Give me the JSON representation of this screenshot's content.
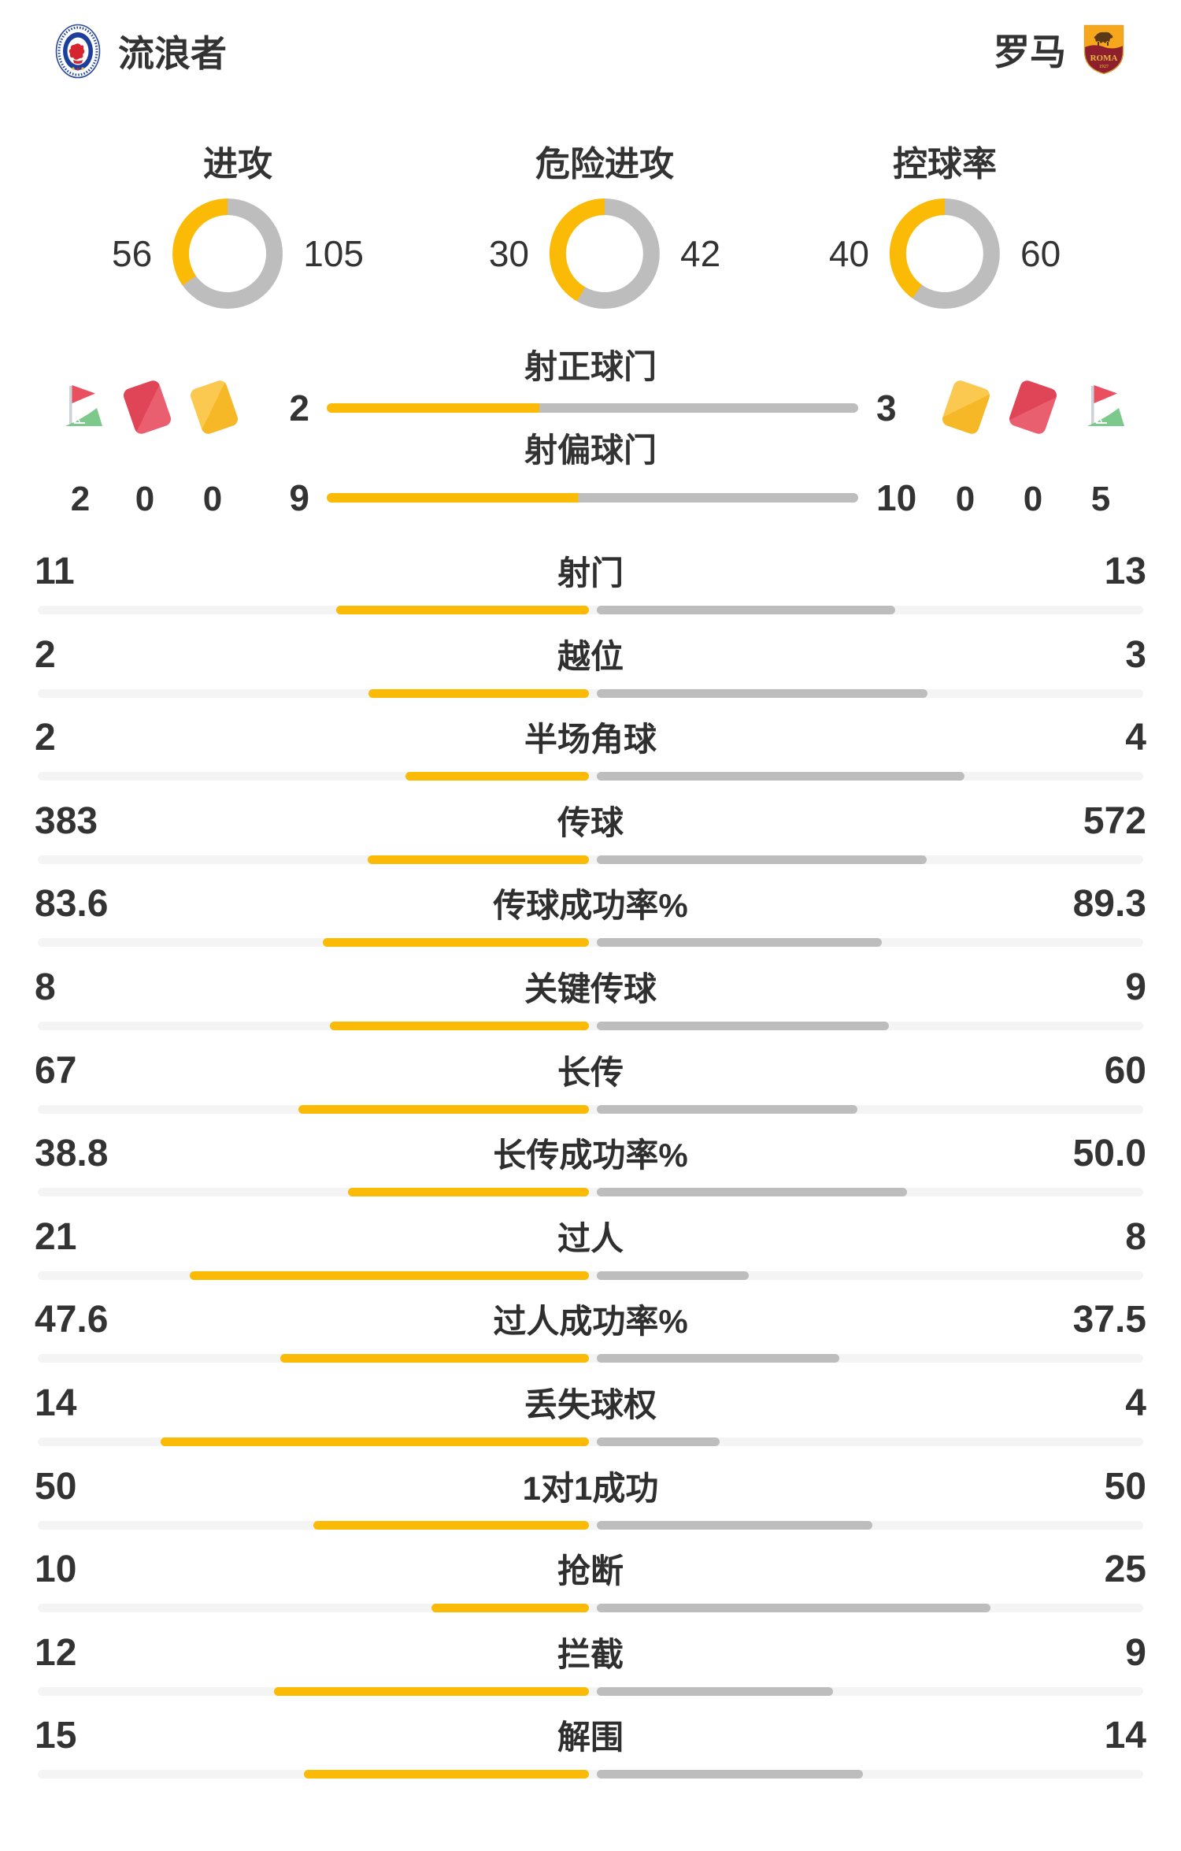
{
  "teams": {
    "home": {
      "name": "流浪者"
    },
    "away": {
      "name": "罗马"
    }
  },
  "donuts": [
    {
      "title": "进攻",
      "home": "56",
      "away": "105"
    },
    {
      "title": "危险进攻",
      "home": "30",
      "away": "42"
    },
    {
      "title": "控球率",
      "home": "40",
      "away": "60"
    }
  ],
  "shot_rows": [
    {
      "title": "射正球门",
      "home": "2",
      "away": "3"
    },
    {
      "title": "射偏球门",
      "home": "9",
      "away": "10"
    }
  ],
  "cards": {
    "home": {
      "corner": "2",
      "red": "0",
      "yellow": "0"
    },
    "away": {
      "yellow": "0",
      "red": "0",
      "corner": "5"
    }
  },
  "stats": [
    {
      "label": "射门",
      "home": "11",
      "away": "13"
    },
    {
      "label": "越位",
      "home": "2",
      "away": "3"
    },
    {
      "label": "半场角球",
      "home": "2",
      "away": "4"
    },
    {
      "label": "传球",
      "home": "383",
      "away": "572"
    },
    {
      "label": "传球成功率%",
      "home": "83.6",
      "away": "89.3"
    },
    {
      "label": "关键传球",
      "home": "8",
      "away": "9"
    },
    {
      "label": "长传",
      "home": "67",
      "away": "60"
    },
    {
      "label": "长传成功率%",
      "home": "38.8",
      "away": "50.0"
    },
    {
      "label": "过人",
      "home": "21",
      "away": "8"
    },
    {
      "label": "过人成功率%",
      "home": "47.6",
      "away": "37.5"
    },
    {
      "label": "丢失球权",
      "home": "14",
      "away": "4"
    },
    {
      "label": "1对1成功",
      "home": "50",
      "away": "50"
    },
    {
      "label": "抢断",
      "home": "10",
      "away": "25"
    },
    {
      "label": "拦截",
      "home": "12",
      "away": "9"
    },
    {
      "label": "解围",
      "home": "15",
      "away": "14"
    }
  ],
  "colors": {
    "home_bar": "#fbba06",
    "away_bar": "#bdbdbd",
    "track": "#f4f4f4"
  }
}
